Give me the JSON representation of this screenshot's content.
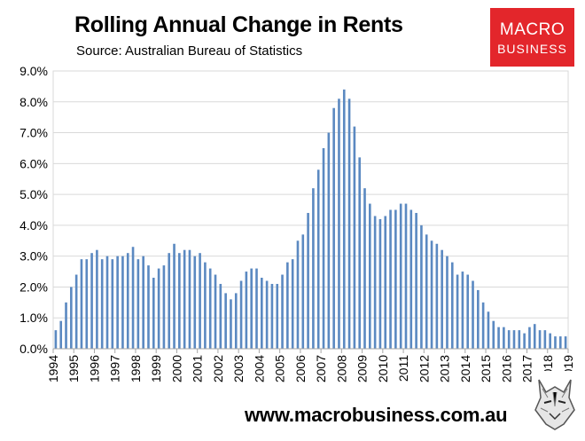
{
  "header": {
    "title": "Rolling Annual Change in Rents",
    "subtitle": "Source: Australian Bureau of Statistics"
  },
  "logo": {
    "line1": "MACRO",
    "line2": "BUSINESS"
  },
  "footer": {
    "url": "www.macrobusiness.com.au"
  },
  "icons": {
    "mascot": "wolf-mascot-icon"
  },
  "colors": {
    "bar": "#5b89c1",
    "brand_red": "#e3262b",
    "gridline": "#d9d9d9"
  },
  "chart_data": {
    "type": "bar",
    "title": "Rolling Annual Change in Rents",
    "subtitle": "Source: Australian Bureau of Statistics",
    "xlabel": "",
    "ylabel": "",
    "ylim": [
      0,
      9
    ],
    "grid": true,
    "legend": "none",
    "y_ticks": [
      "0.0%",
      "1.0%",
      "2.0%",
      "3.0%",
      "4.0%",
      "5.0%",
      "6.0%",
      "7.0%",
      "8.0%",
      "9.0%"
    ],
    "x_ticks": [
      "1994",
      "1995",
      "1996",
      "1997",
      "1998",
      "1999",
      "2000",
      "2001",
      "2002",
      "2003",
      "2004",
      "2005",
      "2006",
      "2007",
      "2008",
      "2009",
      "2010",
      "2011",
      "2012",
      "2013",
      "2014",
      "2015",
      "2016",
      "2017",
      "2018",
      "2019"
    ],
    "series": [
      {
        "values": [
          0.6,
          0.9,
          1.5,
          2.0,
          2.4,
          2.9,
          2.9,
          3.1,
          3.2,
          2.9,
          3.0,
          2.9,
          3.0,
          3.0,
          3.1,
          3.3,
          2.9,
          3.0,
          2.7,
          2.3,
          2.6,
          2.7,
          3.1,
          3.4,
          3.1,
          3.2,
          3.2,
          3.0,
          3.1,
          2.8,
          2.6,
          2.4,
          2.1,
          1.8,
          1.6,
          1.8,
          2.2,
          2.5,
          2.6,
          2.6,
          2.3,
          2.2,
          2.1,
          2.1,
          2.4,
          2.8,
          2.9,
          3.5,
          3.7,
          4.4,
          5.2,
          5.8,
          6.5,
          7.0,
          7.8,
          8.1,
          8.4,
          8.1,
          7.2,
          6.2,
          5.2,
          4.7,
          4.3,
          4.2,
          4.3,
          4.5,
          4.5,
          4.7,
          4.7,
          4.5,
          4.4,
          4.0,
          3.7,
          3.5,
          3.4,
          3.2,
          3.0,
          2.8,
          2.4,
          2.5,
          2.4,
          2.2,
          1.9,
          1.5,
          1.2,
          0.9,
          0.7,
          0.7,
          0.6,
          0.6,
          0.6,
          0.5,
          0.7,
          0.8,
          0.6,
          0.6,
          0.5,
          0.4,
          0.4,
          0.4
        ]
      }
    ]
  }
}
